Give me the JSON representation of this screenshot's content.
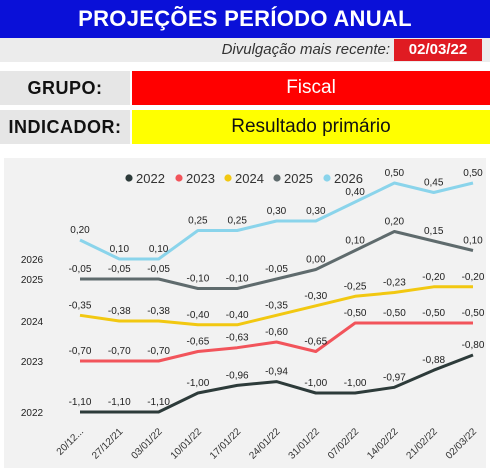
{
  "header": {
    "title": "PROJEÇÕES PERÍODO ANUAL",
    "divulgacao_label": "Divulgação mais recente:",
    "divulgacao_date": "02/03/22"
  },
  "filters": {
    "grupo_label": "GRUPO:",
    "grupo_value": "Fiscal",
    "indicador_label": "INDICADOR:",
    "indicador_value": "Resultado primário"
  },
  "colors": {
    "banner": "#0a10d8",
    "divulgacao_badge": "#e01b22",
    "grupo_value_bg": "#ff0000",
    "indicador_value_bg": "#ffff00"
  },
  "chart_data": {
    "type": "line",
    "categories": [
      "20/12...",
      "27/12/21",
      "03/01/22",
      "10/01/22",
      "17/01/22",
      "24/01/22",
      "31/01/22",
      "07/02/22",
      "14/02/22",
      "21/02/22",
      "02/03/22"
    ],
    "legend_position": "top",
    "series": [
      {
        "name": "2022",
        "color": "#2d3b3a",
        "values": [
          -1.1,
          -1.1,
          -1.1,
          -1.0,
          -0.96,
          -0.94,
          -1.0,
          -1.0,
          -0.97,
          -0.88,
          -0.8
        ],
        "labels": [
          "-1,10",
          "-1,10",
          "-1,10",
          "-1,00",
          "-0,96",
          "-0,94",
          "-1,00",
          "-1,00",
          "-0,97",
          "-0,88",
          "-0,80"
        ]
      },
      {
        "name": "2023",
        "color": "#f2545b",
        "values": [
          -0.7,
          -0.7,
          -0.7,
          -0.65,
          -0.63,
          -0.6,
          -0.65,
          -0.5,
          -0.5,
          -0.5,
          -0.5
        ],
        "labels": [
          "-0,70",
          "-0,70",
          "-0,70",
          "-0,65",
          "-0,63",
          "-0,60",
          "-0,65",
          "-0,50",
          "-0,50",
          "-0,50",
          "-0,50"
        ]
      },
      {
        "name": "2024",
        "color": "#f2c811",
        "values": [
          -0.35,
          -0.38,
          -0.38,
          -0.4,
          -0.4,
          -0.35,
          -0.3,
          -0.25,
          -0.23,
          -0.2,
          -0.2
        ],
        "labels": [
          "-0,35",
          "-0,38",
          "-0,38",
          "-0,40",
          "-0,40",
          "-0,35",
          "-0,30",
          "-0,25",
          "-0,23",
          "-0,20",
          "-0,20"
        ]
      },
      {
        "name": "2025",
        "color": "#5f6b6d",
        "values": [
          -0.05,
          -0.05,
          -0.05,
          -0.1,
          -0.1,
          -0.05,
          0.0,
          0.1,
          0.2,
          0.15,
          0.1
        ],
        "labels": [
          "-0,05",
          "-0,05",
          "-0,05",
          "-0,10",
          "-0,10",
          "-0,05",
          "0,00",
          "0,10",
          "0,20",
          "0,15",
          "0,10"
        ]
      },
      {
        "name": "2026",
        "color": "#8ad4eb",
        "values": [
          0.2,
          0.1,
          0.1,
          0.25,
          0.25,
          0.3,
          0.3,
          0.4,
          0.5,
          0.45,
          0.5
        ],
        "labels": [
          "0,20",
          "0,10",
          "0,10",
          "0,25",
          "0,25",
          "0,30",
          "0,30",
          "0,40",
          "0,50",
          "0,45",
          "0,50"
        ]
      }
    ]
  }
}
